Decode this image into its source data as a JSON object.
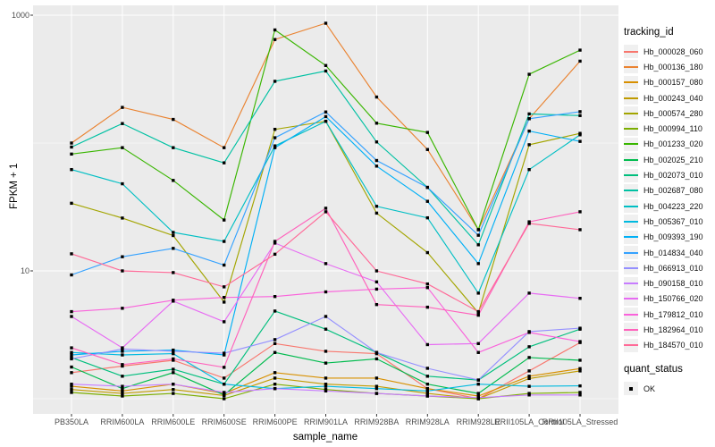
{
  "axes": {
    "x_title": "sample_name",
    "y_title": "FPKM + 1",
    "y_ticks": [
      {
        "label": "1000",
        "value": 1000
      },
      {
        "label": "10",
        "value": 10
      }
    ]
  },
  "legend": {
    "tracking_title": "tracking_id",
    "quant_title": "quant_status",
    "quant_items": [
      {
        "label": "OK",
        "marker": "black-square-point"
      }
    ]
  },
  "theme": {
    "panel_bg": "#ebebeb",
    "grid_color": "#ffffff",
    "tick_text_color": "#4d4d4d",
    "point_color": "#000000"
  },
  "chart_data": {
    "type": "line",
    "x_scale": "categorical",
    "y_scale": "log10",
    "ylim": [
      0.8,
      1200
    ],
    "grid_major_y": [
      10,
      1000
    ],
    "grid_minor_y": [
      1,
      100
    ],
    "legend_position": "right",
    "xlabel": "sample_name",
    "ylabel": "FPKM + 1",
    "categories": [
      "PB350LA",
      "RRIM600LA",
      "RRIM600LE",
      "RRIM600SE",
      "RRIM600PE",
      "RRIM901LA",
      "RRIM928BA",
      "RRIM928LA",
      "RRIM928LE",
      "RRII105LA_Control",
      "RRII105LA_Stressed"
    ],
    "series": [
      {
        "name": "Hb_000028_060",
        "color": "#F8766D",
        "values": [
          1.6,
          1.8,
          2.0,
          1.45,
          2.7,
          2.35,
          2.25,
          1.2,
          1.0,
          1.65,
          2.75
        ]
      },
      {
        "name": "Hb_000136_180",
        "color": "#EA8331",
        "values": [
          100,
          190,
          153,
          92,
          645,
          865,
          229,
          89,
          21,
          155,
          437
        ]
      },
      {
        "name": "Hb_000157_080",
        "color": "#D89000",
        "values": [
          1.25,
          1.15,
          1.3,
          1.1,
          1.6,
          1.45,
          1.45,
          1.2,
          1.05,
          1.5,
          1.72
        ]
      },
      {
        "name": "Hb_000243_040",
        "color": "#C09B00",
        "values": [
          1.18,
          1.1,
          1.18,
          1.06,
          1.45,
          1.3,
          1.25,
          1.1,
          1.0,
          1.44,
          1.65
        ]
      },
      {
        "name": "Hb_000574_280",
        "color": "#A3A500",
        "values": [
          33.8,
          25.9,
          18.9,
          5.7,
          128,
          148,
          28.3,
          13.9,
          4.7,
          97,
          119
        ]
      },
      {
        "name": "Hb_000994_110",
        "color": "#7CAE00",
        "values": [
          1.12,
          1.05,
          1.1,
          1.0,
          1.3,
          1.18,
          1.1,
          1.05,
          1.0,
          1.1,
          1.12
        ]
      },
      {
        "name": "Hb_001233_020",
        "color": "#39B600",
        "values": [
          82,
          92,
          51,
          25,
          767,
          404,
          143,
          121,
          21,
          345,
          533
        ]
      },
      {
        "name": "Hb_002025_210",
        "color": "#00BB4E",
        "values": [
          1.77,
          1.2,
          1.6,
          1.07,
          2.3,
          1.9,
          2.05,
          1.3,
          1.1,
          2.1,
          2.0
        ]
      },
      {
        "name": "Hb_002073_010",
        "color": "#00BF7D",
        "values": [
          2.1,
          1.5,
          1.7,
          1.3,
          4.85,
          3.5,
          2.3,
          1.5,
          1.4,
          2.55,
          3.5
        ]
      },
      {
        "name": "Hb_002687_080",
        "color": "#00C1A3",
        "values": [
          93,
          142,
          92,
          70,
          304,
          366,
          102,
          45,
          16,
          169,
          164
        ]
      },
      {
        "name": "Hb_004223_220",
        "color": "#00BFC4",
        "values": [
          62,
          48,
          20,
          17,
          95,
          148,
          32,
          26,
          6.7,
          62,
          116
        ]
      },
      {
        "name": "Hb_005367_010",
        "color": "#00BAE0",
        "values": [
          2.3,
          2.2,
          2.25,
          1.3,
          1.2,
          1.25,
          1.2,
          1.15,
          1.3,
          1.25,
          1.26
        ]
      },
      {
        "name": "Hb_009393_190",
        "color": "#00B0F6",
        "values": [
          2.2,
          2.35,
          2.4,
          2.2,
          92,
          161,
          66,
          35,
          11.4,
          124,
          103
        ]
      },
      {
        "name": "Hb_014834_040",
        "color": "#35A2FF",
        "values": [
          9.3,
          12.9,
          15,
          11.1,
          110,
          175,
          73,
          45,
          19,
          155,
          176
        ]
      },
      {
        "name": "Hb_066913_010",
        "color": "#9590FF",
        "values": [
          2.05,
          2.45,
          2.35,
          2.27,
          2.9,
          4.4,
          2.3,
          1.73,
          1.4,
          3.35,
          3.56
        ]
      },
      {
        "name": "Hb_090158_010",
        "color": "#C77CFF",
        "values": [
          1.3,
          1.25,
          1.3,
          1.12,
          1.2,
          1.15,
          1.1,
          1.05,
          1.02,
          1.07,
          1.07
        ]
      },
      {
        "name": "Hb_150766_020",
        "color": "#E76BF3",
        "values": [
          4.4,
          2.5,
          5.8,
          4.0,
          16.5,
          11.4,
          8.2,
          2.65,
          2.7,
          6.7,
          6.1
        ]
      },
      {
        "name": "Hb_179812_010",
        "color": "#FA62DB",
        "values": [
          4.8,
          5.1,
          5.9,
          6.2,
          6.3,
          6.85,
          7.2,
          7.4,
          2.3,
          3.3,
          2.8
        ]
      },
      {
        "name": "Hb_182964_010",
        "color": "#FF62BC",
        "values": [
          2.5,
          1.85,
          2.05,
          1.76,
          17,
          30.9,
          5.45,
          5.2,
          4.5,
          24.2,
          29
        ]
      },
      {
        "name": "Hb_184570_010",
        "color": "#FF6A98",
        "values": [
          13.6,
          10,
          9.7,
          7.5,
          13.5,
          29,
          10,
          7.9,
          4.8,
          23.5,
          21
        ]
      }
    ],
    "point_marker": "black-square"
  }
}
